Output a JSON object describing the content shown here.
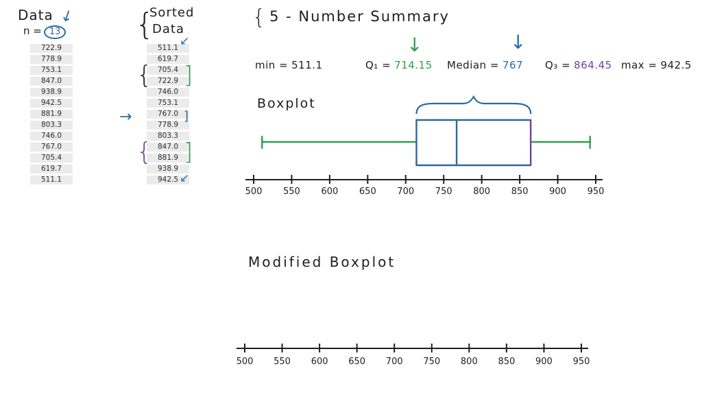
{
  "colors": {
    "green": "#2f9e4f",
    "blue": "#2a6aa0",
    "purple": "#7040a0",
    "ink": "#1e1e1e"
  },
  "icons": {
    "down_arrow": "↓",
    "diagonal_arrow": "↙",
    "right_arrow": "→",
    "open_brace": "{",
    "close_bracket": "]"
  },
  "data_column": {
    "title": "Data",
    "n_label": "n =",
    "n_value": "13",
    "values": [
      "722.9",
      "778.9",
      "753.1",
      "847.0",
      "938.9",
      "942.5",
      "881.9",
      "803.3",
      "746.0",
      "767.0",
      "705.4",
      "619.7",
      "511.1"
    ]
  },
  "sorted_column": {
    "title_line1": "Sorted",
    "title_line2": "Data",
    "values": [
      "511.1",
      "619.7",
      "705.4",
      "722.9",
      "746.0",
      "753.1",
      "767.0",
      "778.9",
      "803.3",
      "847.0",
      "881.9",
      "938.9",
      "942.5"
    ]
  },
  "summary": {
    "brace": "{",
    "heading": "5 - Number Summary",
    "min": {
      "label": "min =",
      "value": "511.1"
    },
    "q1": {
      "label": "Q₁ =",
      "value": "714.15"
    },
    "median": {
      "label": "Median =",
      "value": "767"
    },
    "q3": {
      "label": "Q₃ =",
      "value": "864.45"
    },
    "max": {
      "label": "max =",
      "value": "942.5"
    }
  },
  "sections": {
    "boxplot_label": "Boxplot",
    "modified_boxplot_label": "Modified Boxplot"
  },
  "chart_data": [
    {
      "type": "boxplot",
      "title": "Boxplot",
      "n": 13,
      "data": [
        722.9,
        778.9,
        753.1,
        847.0,
        938.9,
        942.5,
        881.9,
        803.3,
        746.0,
        767.0,
        705.4,
        619.7,
        511.1
      ],
      "sorted_data": [
        511.1,
        619.7,
        705.4,
        722.9,
        746.0,
        753.1,
        767.0,
        778.9,
        803.3,
        847.0,
        881.9,
        938.9,
        942.5
      ],
      "five_number_summary": {
        "min": 511.1,
        "q1": 714.15,
        "median": 767,
        "q3": 864.45,
        "max": 942.5
      },
      "xlim": [
        500,
        950
      ],
      "xticks": [
        500,
        550,
        600,
        650,
        700,
        750,
        800,
        850,
        900,
        950
      ],
      "grid": false,
      "orientation": "horizontal"
    },
    {
      "type": "line",
      "title": "Modified Boxplot",
      "note": "empty number line, plot not yet drawn",
      "xlim": [
        500,
        950
      ],
      "xticks": [
        500,
        550,
        600,
        650,
        700,
        750,
        800,
        850,
        900,
        950
      ],
      "series": []
    }
  ]
}
